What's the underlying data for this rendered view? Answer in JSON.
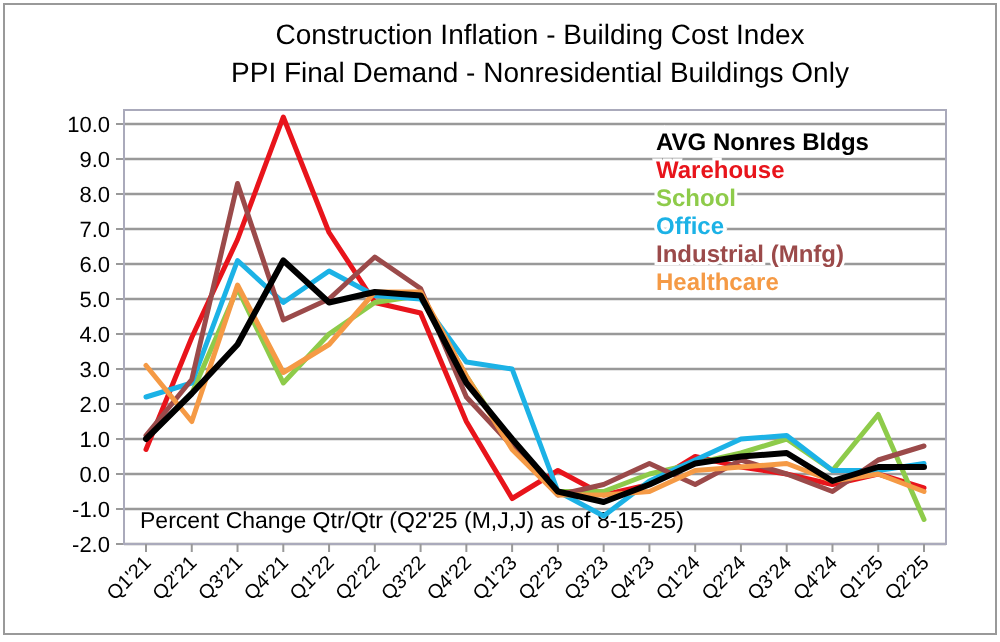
{
  "chart_data": {
    "type": "line",
    "title": "Construction Inflation - Building Cost Index",
    "subtitle": "PPI Final Demand - Nonresidential Buildings Only",
    "categories": [
      "Q1'21",
      "Q2'21",
      "Q3'21",
      "Q4'21",
      "Q1'22",
      "Q2'22",
      "Q3'22",
      "Q4'22",
      "Q1'23",
      "Q2'23",
      "Q3'23",
      "Q4'23",
      "Q1'24",
      "Q2'24",
      "Q3'24",
      "Q4'24",
      "Q1'25",
      "Q2'25"
    ],
    "series": [
      {
        "name": "AVG Nonres Bldgs",
        "color": "#000000",
        "values": [
          1.0,
          2.3,
          3.7,
          6.1,
          4.9,
          5.2,
          5.1,
          2.6,
          1.0,
          -0.5,
          -0.8,
          -0.3,
          0.3,
          0.5,
          0.6,
          -0.2,
          0.2,
          0.2
        ]
      },
      {
        "name": "Warehouse",
        "color": "#e8141b",
        "values": [
          0.7,
          3.9,
          6.7,
          10.2,
          6.9,
          4.9,
          4.6,
          1.5,
          -0.7,
          0.1,
          -0.6,
          -0.3,
          0.5,
          0.2,
          0.0,
          -0.3,
          0.0,
          -0.4
        ]
      },
      {
        "name": "School",
        "color": "#8ecb4a",
        "values": [
          1.0,
          2.3,
          5.3,
          2.6,
          4.0,
          4.9,
          5.1,
          2.8,
          0.8,
          -0.5,
          -0.5,
          0.0,
          0.3,
          0.6,
          1.0,
          0.1,
          1.7,
          -1.3
        ]
      },
      {
        "name": "Office",
        "color": "#1cb2e6",
        "values": [
          2.2,
          2.6,
          6.1,
          4.9,
          5.8,
          5.1,
          5.0,
          3.2,
          3.0,
          -0.5,
          -1.2,
          -0.2,
          0.4,
          1.0,
          1.1,
          0.1,
          0.1,
          0.3
        ]
      },
      {
        "name": "Industrial (Mnfg)",
        "color": "#9b4a4a",
        "values": [
          1.1,
          2.7,
          8.3,
          4.4,
          5.0,
          6.2,
          5.3,
          2.2,
          0.8,
          -0.6,
          -0.3,
          0.3,
          -0.3,
          0.4,
          0.0,
          -0.5,
          0.4,
          0.8
        ]
      },
      {
        "name": "Healthcare",
        "color": "#f59a45",
        "values": [
          3.1,
          1.5,
          5.4,
          2.9,
          3.7,
          5.2,
          5.2,
          2.8,
          0.7,
          -0.6,
          -0.6,
          -0.5,
          0.1,
          0.2,
          0.3,
          -0.2,
          0.0,
          -0.5
        ]
      }
    ],
    "ylim": [
      -2,
      10.4
    ],
    "yticks": [
      {
        "value": -2,
        "label": "-2.0"
      },
      {
        "value": -1,
        "label": "-1.0"
      },
      {
        "value": 0,
        "label": "0.0"
      },
      {
        "value": 1,
        "label": "1.0"
      },
      {
        "value": 2,
        "label": "2.0"
      },
      {
        "value": 3,
        "label": "3.0"
      },
      {
        "value": 4,
        "label": "4.0"
      },
      {
        "value": 5,
        "label": "5.0"
      },
      {
        "value": 6,
        "label": "6.0"
      },
      {
        "value": 7,
        "label": "7.0"
      },
      {
        "value": 8,
        "label": "8.0"
      },
      {
        "value": 9,
        "label": "9.0"
      },
      {
        "value": 10,
        "label": "10.0"
      }
    ],
    "grid": "y",
    "legend": "top right",
    "line_style": "solid",
    "marker": "none",
    "annotations": [
      "Percent Change Qtr/Qtr  (Q2'25 (M,J,J) as of 8-15-25)"
    ]
  }
}
